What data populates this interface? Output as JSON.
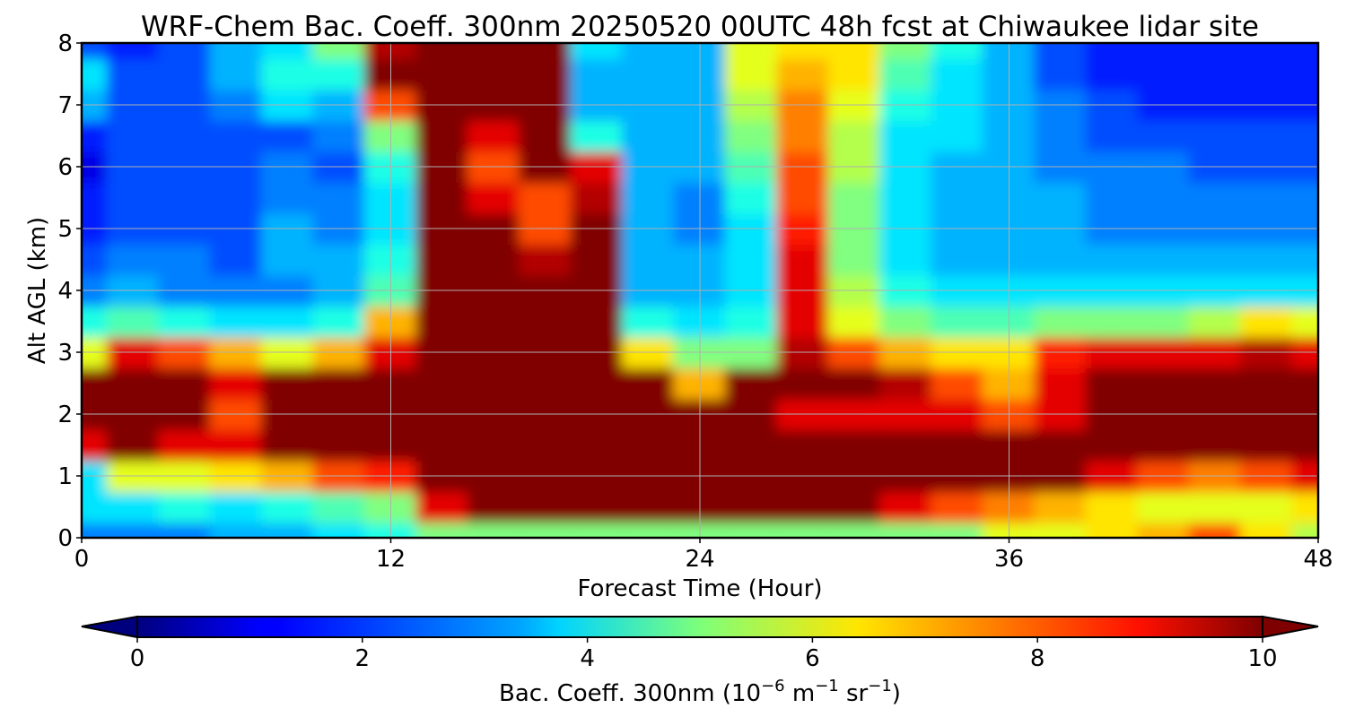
{
  "chart_data": {
    "type": "heatmap",
    "title": "WRF-Chem Bac. Coeff. 300nm  20250520 00UTC 48h fcst at Chiwaukee lidar site",
    "xlabel": "Forecast Time (Hour)",
    "ylabel": "Alt AGL (km)",
    "xlim": [
      0,
      48
    ],
    "ylim": [
      0,
      8
    ],
    "xticks": [
      0,
      12,
      24,
      36,
      48
    ],
    "yticks": [
      0,
      1,
      2,
      3,
      4,
      5,
      6,
      7,
      8
    ],
    "grid": true,
    "colorbar": {
      "label_prefix": "Bac. Coeff. 300nm  (10",
      "label_exp1": "−6",
      "label_mid": " m",
      "label_exp2": "−1",
      "label_mid2": " sr",
      "label_exp3": "−1",
      "label_suffix": ")",
      "ticks": [
        0,
        2,
        4,
        6,
        8,
        10
      ],
      "range": [
        0,
        10
      ],
      "extend": "both",
      "colormap": "jet",
      "orientation": "horizontal"
    },
    "x": [
      0,
      2,
      4,
      6,
      8,
      10,
      12,
      14,
      16,
      18,
      20,
      22,
      24,
      26,
      28,
      30,
      32,
      34,
      36,
      38,
      40,
      42,
      44,
      46,
      48
    ],
    "y": [
      0,
      0.5,
      1,
      1.5,
      2,
      2.5,
      3,
      3.5,
      4,
      4.5,
      5,
      5.5,
      6,
      6.5,
      7,
      7.5,
      8
    ],
    "z": [
      [
        2.5,
        2.5,
        2.5,
        3,
        3,
        3.5,
        4,
        5,
        5,
        5,
        5,
        5,
        5,
        5,
        5,
        5,
        5,
        5,
        6,
        6,
        6.5,
        7,
        8,
        6.5,
        5.5
      ],
      [
        3.5,
        3.5,
        4,
        3.5,
        4,
        4.5,
        5,
        9,
        10,
        10,
        10,
        10,
        10,
        10,
        10,
        10,
        9,
        8,
        7.5,
        7,
        6.5,
        6,
        6,
        6,
        6.5
      ],
      [
        3.5,
        6,
        6,
        6.5,
        7,
        8,
        8.5,
        10,
        10,
        10,
        10,
        10,
        10,
        10,
        10,
        10,
        10,
        10,
        10,
        10,
        9,
        8,
        7.5,
        8,
        9
      ],
      [
        9,
        10,
        9,
        9,
        10,
        10,
        10,
        10,
        10,
        10,
        10,
        10,
        10,
        10,
        10,
        10,
        10,
        10,
        10,
        10,
        10,
        10,
        10,
        10,
        10
      ],
      [
        10,
        10,
        10,
        8,
        10,
        10,
        10,
        10,
        10,
        10,
        10,
        10,
        10,
        10,
        9,
        9,
        9,
        9,
        8,
        9,
        10,
        10,
        10,
        10,
        10
      ],
      [
        10,
        10,
        10,
        9,
        10,
        10,
        10,
        10,
        10,
        10,
        10,
        10,
        7,
        10,
        10,
        10,
        9.5,
        8,
        7,
        9,
        10,
        10,
        10,
        10,
        10
      ],
      [
        6,
        9,
        8,
        7,
        6,
        7,
        9,
        10,
        10,
        10,
        10,
        6.5,
        5,
        5,
        9.5,
        8,
        7,
        6.5,
        6.5,
        8.5,
        9,
        9,
        9,
        9.5,
        9
      ],
      [
        4,
        4.5,
        4,
        3.5,
        3.5,
        4,
        7,
        10,
        10,
        10,
        10,
        4,
        3.5,
        4,
        9,
        6,
        5,
        4.5,
        4.5,
        5,
        5,
        5,
        5.5,
        6.5,
        6
      ],
      [
        2.5,
        3,
        2.5,
        2.5,
        2.5,
        3,
        4.5,
        10,
        10,
        10,
        10,
        3,
        3,
        3.5,
        9,
        5.5,
        4,
        3.5,
        3.5,
        3.5,
        3.5,
        3.5,
        3.5,
        3.5,
        3.5
      ],
      [
        2,
        2.5,
        2.5,
        2,
        3,
        3,
        4,
        10,
        10,
        9.5,
        10,
        3,
        3,
        3.5,
        9,
        5,
        3.5,
        3,
        3,
        3,
        3,
        3,
        3,
        3,
        3
      ],
      [
        1.5,
        2,
        2,
        2,
        3,
        2.5,
        3.5,
        10,
        10,
        8,
        10,
        3,
        2.5,
        3.5,
        8.5,
        5,
        3.5,
        3,
        3,
        3,
        2.5,
        2.5,
        2.5,
        2.5,
        2.5
      ],
      [
        1.5,
        2,
        2,
        2,
        2.5,
        2.5,
        3.5,
        10,
        9,
        8,
        9.5,
        3,
        2.5,
        4,
        8,
        5,
        3.5,
        3,
        3,
        3,
        2.5,
        2.5,
        2.5,
        2.5,
        2.5
      ],
      [
        1,
        2,
        2,
        2,
        2.5,
        2,
        4,
        10,
        8,
        10,
        9,
        3,
        3,
        4.5,
        8,
        5.5,
        3.5,
        3,
        3,
        2.5,
        2.5,
        2.5,
        2,
        2,
        2
      ],
      [
        1.5,
        2,
        2,
        2,
        2,
        2.5,
        5,
        10,
        9,
        10,
        4,
        3,
        3,
        5,
        7.5,
        5.5,
        3.5,
        3.5,
        3,
        2.5,
        2,
        2,
        2,
        2,
        2
      ],
      [
        3,
        2,
        2,
        2.5,
        3.5,
        3,
        8,
        10,
        10,
        10,
        3,
        3,
        3,
        5.5,
        7.5,
        6,
        4,
        3.5,
        3,
        2.5,
        2,
        1.5,
        1.5,
        1.5,
        1.5
      ],
      [
        3.5,
        2,
        2,
        3,
        4,
        4,
        10,
        10,
        10,
        10,
        3,
        3,
        3,
        6,
        7,
        6.5,
        4.5,
        3.5,
        3,
        2,
        1.5,
        1.5,
        1.5,
        1.5,
        1.5
      ],
      [
        2,
        1.5,
        2,
        3,
        3.5,
        5,
        9.5,
        10,
        10,
        10,
        3.5,
        3,
        3,
        6,
        6.5,
        6.5,
        5,
        4,
        3,
        2,
        1.5,
        1.5,
        1.5,
        1.5,
        1.5
      ]
    ]
  }
}
